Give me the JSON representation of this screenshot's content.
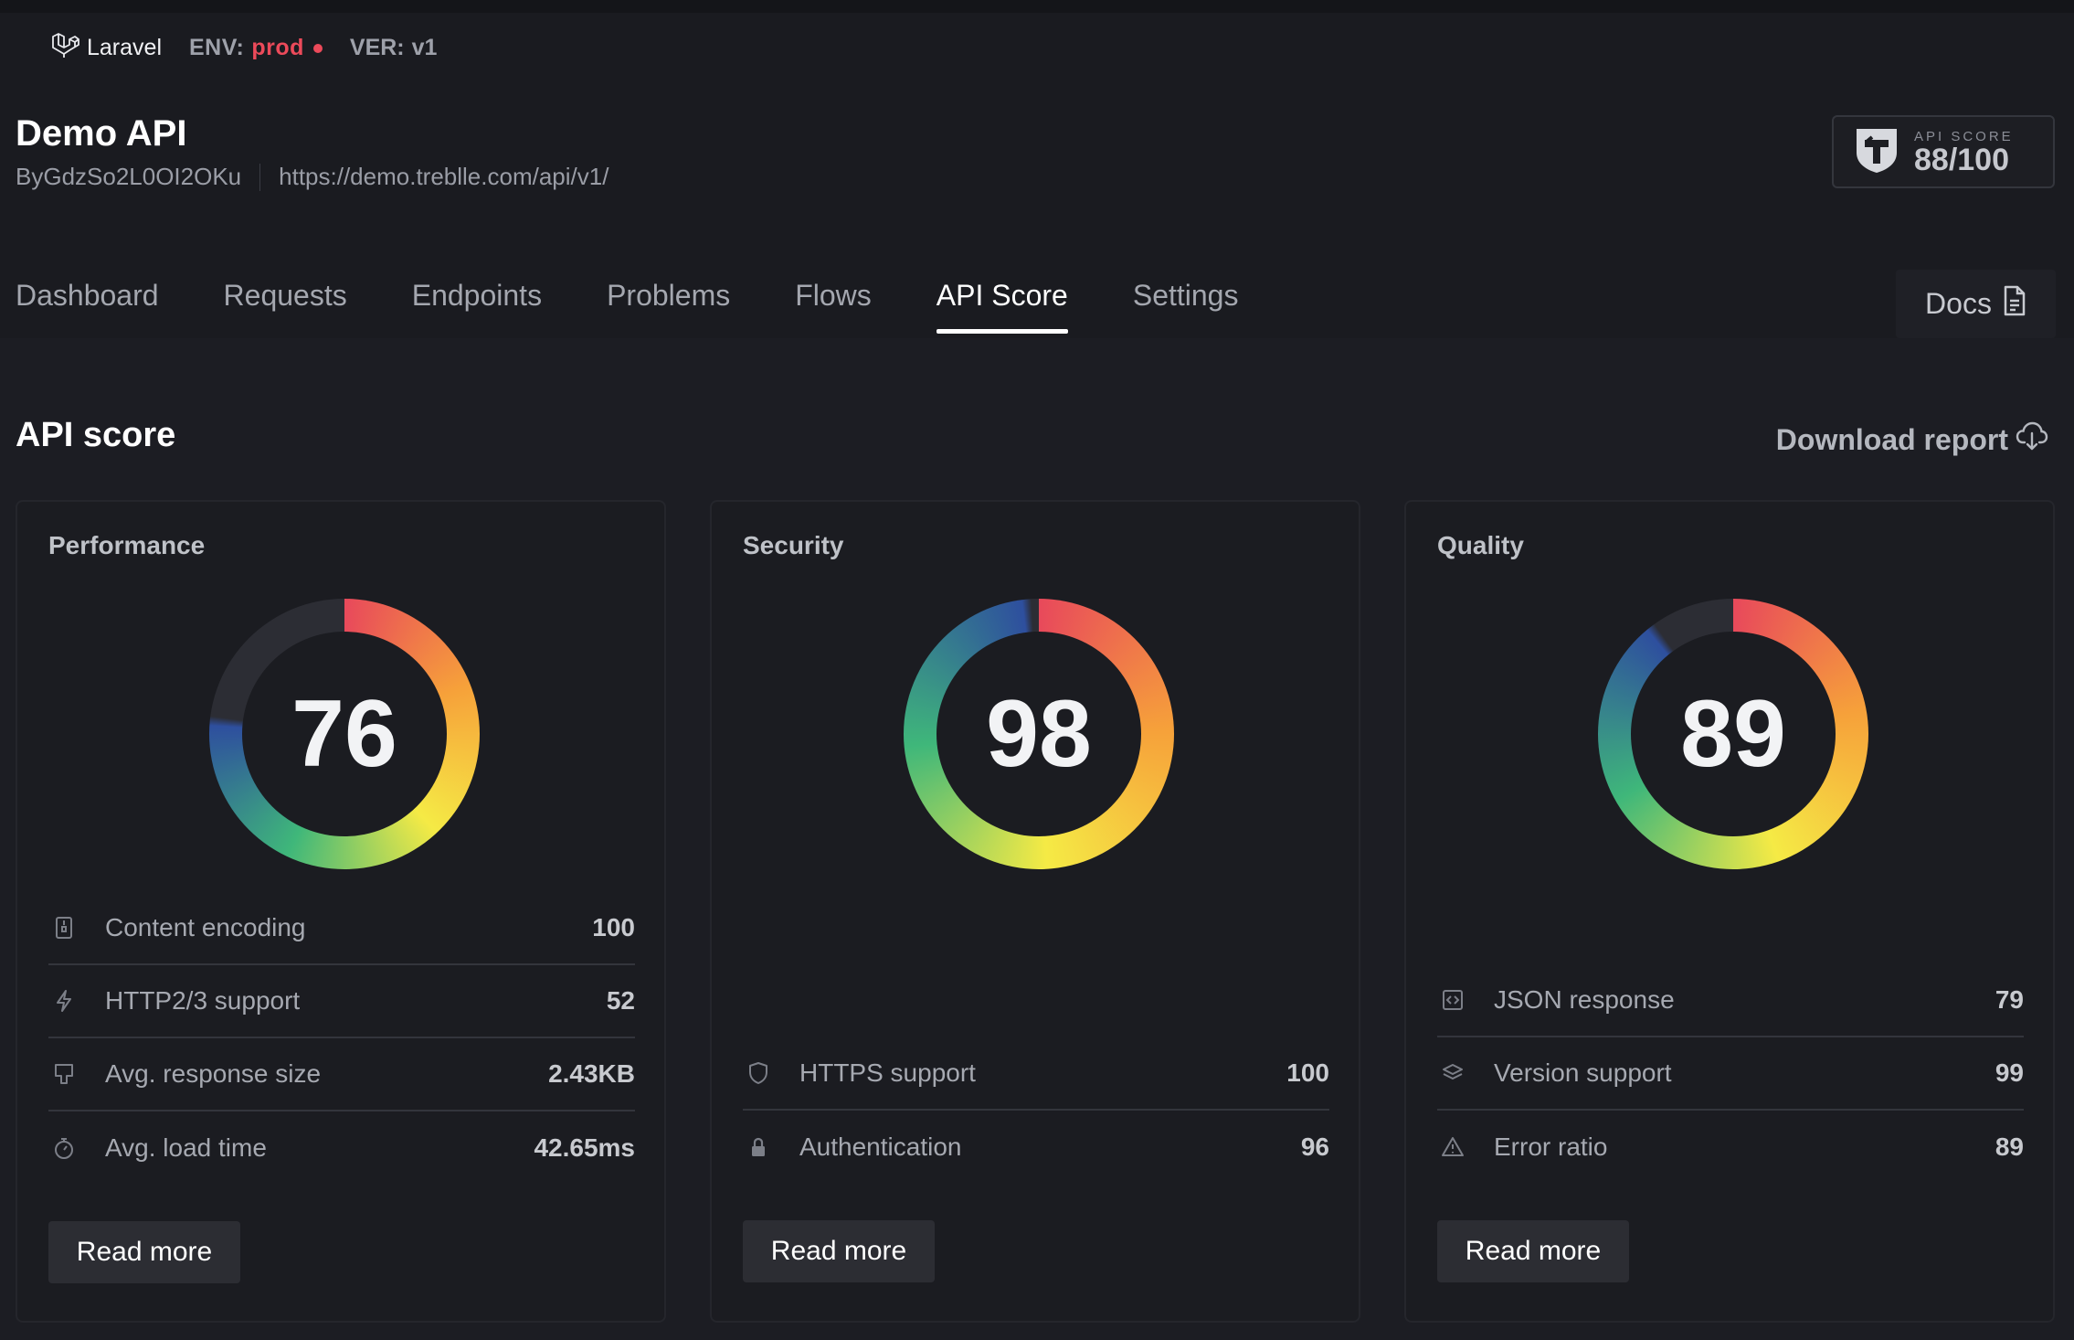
{
  "topbar": {
    "brand": "Laravel",
    "env_label": "ENV:",
    "env_value": "prod",
    "ver_label": "VER:",
    "ver_value": "v1"
  },
  "api": {
    "title": "Demo API",
    "id": "ByGdzSo2L0OI2OKu",
    "url": "https://demo.treblle.com/api/v1/"
  },
  "score_badge": {
    "label": "API SCORE",
    "value": "88/100"
  },
  "tabs": [
    {
      "label": "Dashboard",
      "active": false
    },
    {
      "label": "Requests",
      "active": false
    },
    {
      "label": "Endpoints",
      "active": false
    },
    {
      "label": "Problems",
      "active": false
    },
    {
      "label": "Flows",
      "active": false
    },
    {
      "label": "API Score",
      "active": true
    },
    {
      "label": "Settings",
      "active": false
    }
  ],
  "docs_label": "Docs",
  "section": {
    "title": "API score",
    "download_label": "Download report"
  },
  "cards": [
    {
      "title": "Performance",
      "score": "76",
      "score_fraction": 0.76,
      "read_more": "Read more",
      "metrics": [
        {
          "icon": "zip-file-icon",
          "label": "Content encoding",
          "value": "100"
        },
        {
          "icon": "lightning-icon",
          "label": "HTTP2/3 support",
          "value": "52"
        },
        {
          "icon": "weight-icon",
          "label": "Avg. response size",
          "value": "2.43KB"
        },
        {
          "icon": "stopwatch-icon",
          "label": "Avg. load time",
          "value": "42.65ms"
        }
      ]
    },
    {
      "title": "Security",
      "score": "98",
      "score_fraction": 0.98,
      "read_more": "Read more",
      "metrics": [
        {
          "icon": "shield-icon",
          "label": "HTTPS support",
          "value": "100"
        },
        {
          "icon": "lock-icon",
          "label": "Authentication",
          "value": "96"
        }
      ]
    },
    {
      "title": "Quality",
      "score": "89",
      "score_fraction": 0.89,
      "read_more": "Read more",
      "metrics": [
        {
          "icon": "code-icon",
          "label": "JSON response",
          "value": "79"
        },
        {
          "icon": "layers-icon",
          "label": "Version support",
          "value": "99"
        },
        {
          "icon": "warning-icon",
          "label": "Error ratio",
          "value": "89"
        }
      ]
    }
  ],
  "colors": {
    "background": "#1c1d23",
    "accent_env": "#ec4a5a",
    "gauge_start": "#e8495b",
    "gauge_mid": "#f6a13a",
    "gauge_yellow": "#f5ea45",
    "gauge_green": "#3fb77a",
    "gauge_blue": "#2e4f9e",
    "gauge_track": "#2c2d34"
  }
}
